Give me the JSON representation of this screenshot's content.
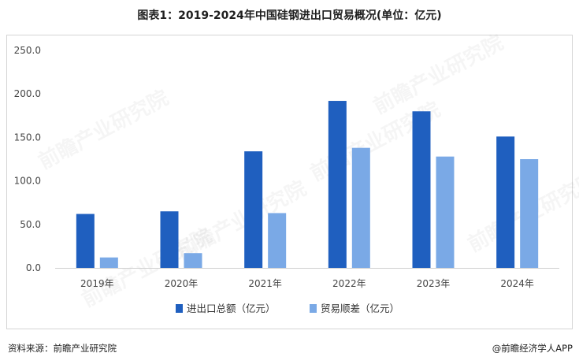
{
  "title": "图表1：2019-2024年中国硅钢进出口贸易概况(单位：亿元)",
  "source": "资料来源：前瞻产业研究院",
  "brand": "@前瞻经济学人APP",
  "watermark": "前瞻产业研究院",
  "chart_data": {
    "type": "bar",
    "categories": [
      "2019年",
      "2020年",
      "2021年",
      "2022年",
      "2023年",
      "2024年"
    ],
    "series": [
      {
        "name": "进出口总额（亿元）",
        "color": "#1f5fbf",
        "values": [
          62,
          65,
          134,
          192,
          180,
          151
        ]
      },
      {
        "name": "贸易顺差（亿元）",
        "color": "#7aa9e6",
        "values": [
          12,
          17,
          63,
          138,
          128,
          125
        ]
      }
    ],
    "y_ticks": [
      "0.0",
      "50.0",
      "100.0",
      "150.0",
      "200.0",
      "250.0"
    ],
    "ylim": [
      0,
      250
    ],
    "grid": false,
    "legend": "bottom-center"
  }
}
